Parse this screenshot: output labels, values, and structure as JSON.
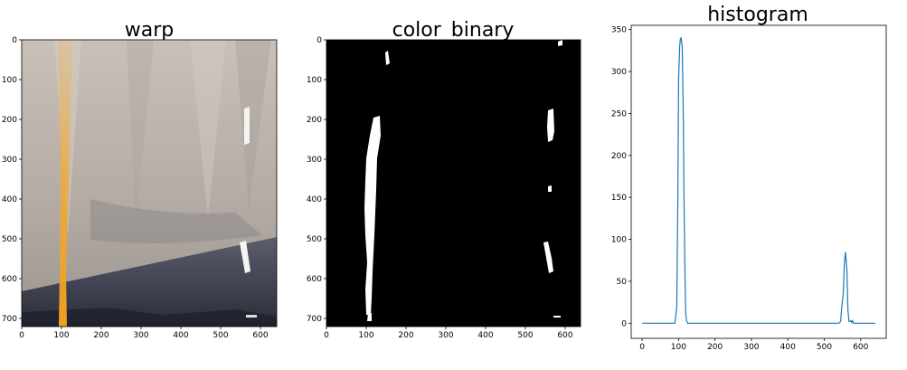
{
  "chart_data": [
    {
      "type": "image",
      "title": "warp",
      "xlim": [
        0,
        640
      ],
      "ylim": [
        720,
        0
      ],
      "xticks": [
        "0",
        "100",
        "200",
        "300",
        "400",
        "500",
        "600"
      ],
      "yticks": [
        "0",
        "100",
        "200",
        "300",
        "400",
        "500",
        "600",
        "700"
      ]
    },
    {
      "type": "image",
      "title": "color_binary",
      "xlim": [
        0,
        640
      ],
      "ylim": [
        720,
        0
      ],
      "xticks": [
        "0",
        "100",
        "200",
        "300",
        "400",
        "500",
        "600"
      ],
      "yticks": [
        "0",
        "100",
        "200",
        "300",
        "400",
        "500",
        "600",
        "700"
      ]
    },
    {
      "type": "line",
      "title": "histogram",
      "xlim": [
        -30,
        670
      ],
      "ylim": [
        -18,
        355
      ],
      "grid": false,
      "color": "#1f77b4",
      "xticks": [
        "0",
        "100",
        "200",
        "300",
        "400",
        "500",
        "600"
      ],
      "yticks": [
        "0",
        "50",
        "100",
        "150",
        "200",
        "250",
        "300",
        "350"
      ],
      "x": [
        0,
        90,
        95,
        98,
        100,
        103,
        105,
        107,
        110,
        113,
        115,
        118,
        120,
        122,
        125,
        130,
        540,
        545,
        548,
        552,
        555,
        558,
        560,
        562,
        565,
        568,
        570,
        573,
        575,
        578,
        580,
        583,
        640
      ],
      "y": [
        0,
        0,
        20,
        150,
        290,
        330,
        339,
        340,
        330,
        250,
        150,
        50,
        10,
        3,
        0,
        0,
        0,
        2,
        20,
        35,
        70,
        85,
        75,
        65,
        15,
        2,
        2,
        3,
        1,
        3,
        0,
        0,
        0
      ]
    }
  ]
}
